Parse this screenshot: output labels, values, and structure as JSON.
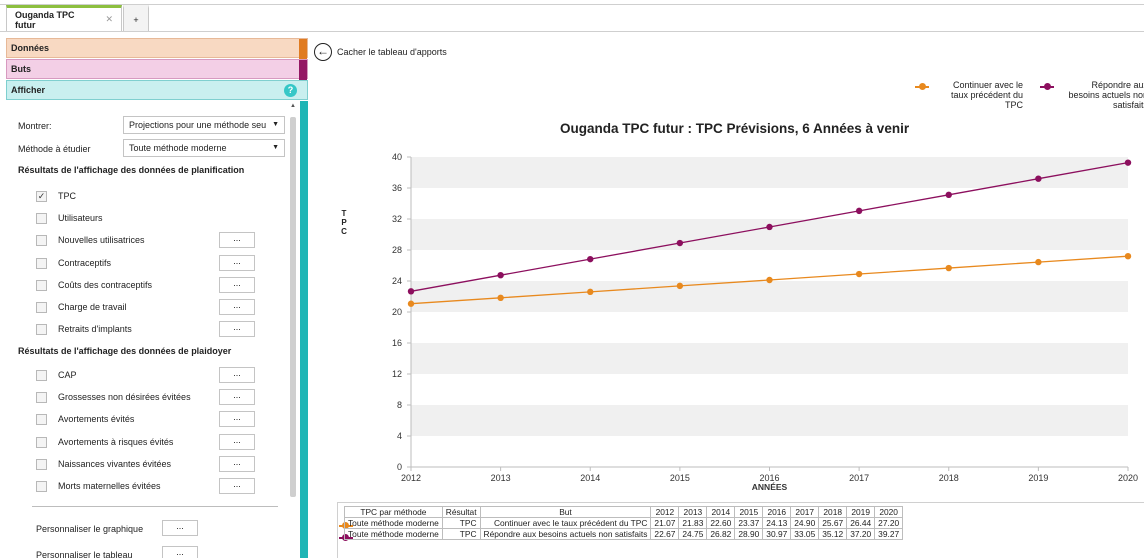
{
  "tabs": {
    "active": "Ouganda TPC futur",
    "close": "✕",
    "add": "+"
  },
  "sections": {
    "donnees": "Données",
    "buts": "Buts",
    "afficher": "Afficher",
    "help": "?"
  },
  "panel": {
    "show_label": "Montrer:",
    "show_value": "Projections pour une méthode seu",
    "method_label": "Méthode à étudier",
    "method_value": "Toute méthode moderne",
    "planning_heading": "Résultats de l'affichage des données de planification",
    "planning_items": [
      {
        "label": "TPC",
        "checked": true,
        "ellipsis": false
      },
      {
        "label": "Utilisateurs",
        "checked": false,
        "ellipsis": false
      },
      {
        "label": "Nouvelles utilisatrices",
        "checked": false,
        "ellipsis": true
      },
      {
        "label": "Contraceptifs",
        "checked": false,
        "ellipsis": true
      },
      {
        "label": "Coûts des contraceptifs",
        "checked": false,
        "ellipsis": true
      },
      {
        "label": "Charge de travail",
        "checked": false,
        "ellipsis": true
      },
      {
        "label": "Retraits d'implants",
        "checked": false,
        "ellipsis": true
      }
    ],
    "advocacy_heading": "Résultats de l'affichage des données de plaidoyer",
    "advocacy_items": [
      {
        "label": "CAP",
        "checked": false,
        "ellipsis": true
      },
      {
        "label": "Grossesses non désirées évitées",
        "checked": false,
        "ellipsis": true
      },
      {
        "label": "Avortements évités",
        "checked": false,
        "ellipsis": true
      },
      {
        "label": "Avortements à risques évités",
        "checked": false,
        "ellipsis": true
      },
      {
        "label": "Naissances vivantes évitées",
        "checked": false,
        "ellipsis": true
      },
      {
        "label": "Morts maternelles évitées",
        "checked": false,
        "ellipsis": true
      }
    ],
    "ellipsis": "...",
    "customize_chart": "Personnaliser le graphique",
    "customize_table": "Personnaliser le tableau"
  },
  "main": {
    "back_label": "Cacher le tableau d'apports",
    "back_icon": "←"
  },
  "colors": {
    "series1": "#e8891e",
    "series2": "#8c0f5e",
    "teal": "#1fb5b5"
  },
  "chart_data": {
    "type": "line",
    "title": "Ouganda TPC futur : TPC Prévisions, 6 Années à venir",
    "ylabel": "TPC",
    "xlabel": "ANNÉES",
    "x": [
      2012,
      2013,
      2014,
      2015,
      2016,
      2017,
      2018,
      2019,
      2020
    ],
    "ylim": [
      0,
      40
    ],
    "yticks": [
      0,
      4,
      8,
      12,
      16,
      20,
      24,
      28,
      32,
      36,
      40
    ],
    "legend_position": "top-right",
    "series": [
      {
        "name": "Continuer avec le taux précédent du TPC",
        "values": [
          21.07,
          21.83,
          22.6,
          23.37,
          24.13,
          24.9,
          25.67,
          26.44,
          27.2
        ]
      },
      {
        "name": "Répondre aux besoins actuels non satisfaits",
        "values": [
          22.67,
          24.75,
          26.82,
          28.9,
          30.97,
          33.05,
          35.12,
          37.2,
          39.27
        ]
      }
    ]
  },
  "table": {
    "headers": [
      "TPC par méthode",
      "Résultat",
      "But",
      "2012",
      "2013",
      "2014",
      "2015",
      "2016",
      "2017",
      "2018",
      "2019",
      "2020"
    ],
    "rows": [
      [
        "Toute méthode moderne",
        "TPC",
        "Continuer avec le taux précédent du TPC",
        "21.07",
        "21.83",
        "22.60",
        "23.37",
        "24.13",
        "24.90",
        "25.67",
        "26.44",
        "27.20"
      ],
      [
        "Toute méthode moderne",
        "TPC",
        "Répondre aux besoins actuels non satisfaits",
        "22.67",
        "24.75",
        "26.82",
        "28.90",
        "30.97",
        "33.05",
        "35.12",
        "37.20",
        "39.27"
      ]
    ]
  }
}
